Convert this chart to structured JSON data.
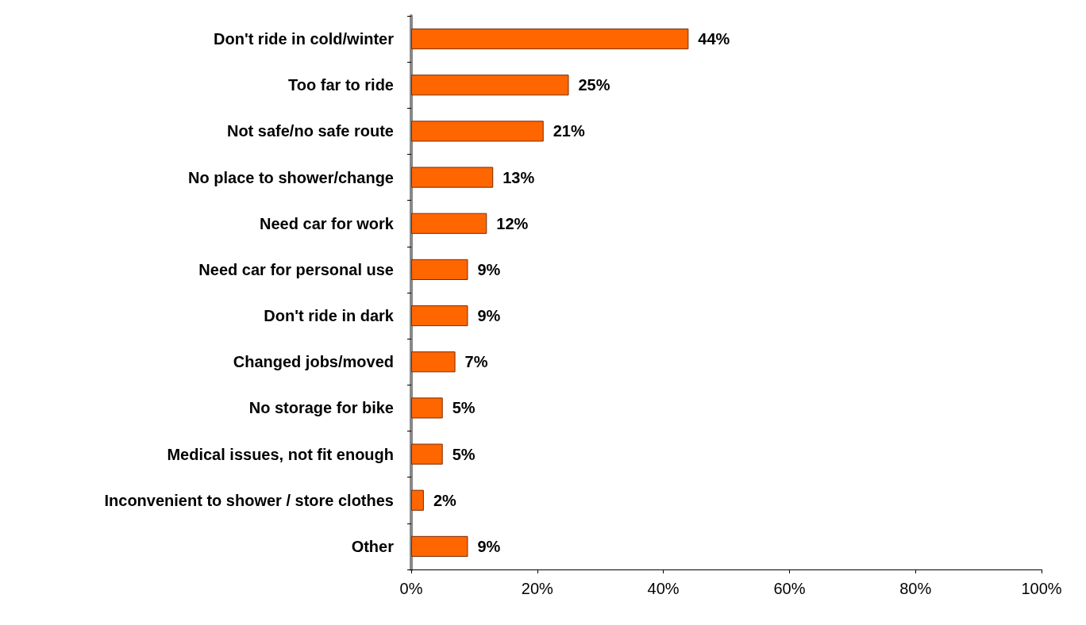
{
  "chart_data": {
    "type": "bar",
    "orientation": "horizontal",
    "categories": [
      "Don't ride in cold/winter",
      "Too far to ride",
      "Not safe/no safe route",
      "No place to shower/change",
      "Need car for work",
      "Need car for personal use",
      "Don't ride in dark",
      "Changed jobs/moved",
      "No storage for bike",
      "Medical issues, not fit enough",
      "Inconvenient to shower / store clothes",
      "Other"
    ],
    "values": [
      44,
      25,
      21,
      13,
      12,
      9,
      9,
      7,
      5,
      5,
      2,
      9
    ],
    "value_labels": [
      "44%",
      "25%",
      "21%",
      "13%",
      "12%",
      "9%",
      "9%",
      "7%",
      "5%",
      "5%",
      "2%",
      "9%"
    ],
    "color": "#ff6600",
    "xlim": [
      0,
      100
    ],
    "xticks": [
      {
        "value": 0,
        "label": "0%"
      },
      {
        "value": 20,
        "label": "20%"
      },
      {
        "value": 40,
        "label": "40%"
      },
      {
        "value": 60,
        "label": "60%"
      },
      {
        "value": 80,
        "label": "80%"
      },
      {
        "value": 100,
        "label": "100%"
      }
    ],
    "grid": false
  }
}
